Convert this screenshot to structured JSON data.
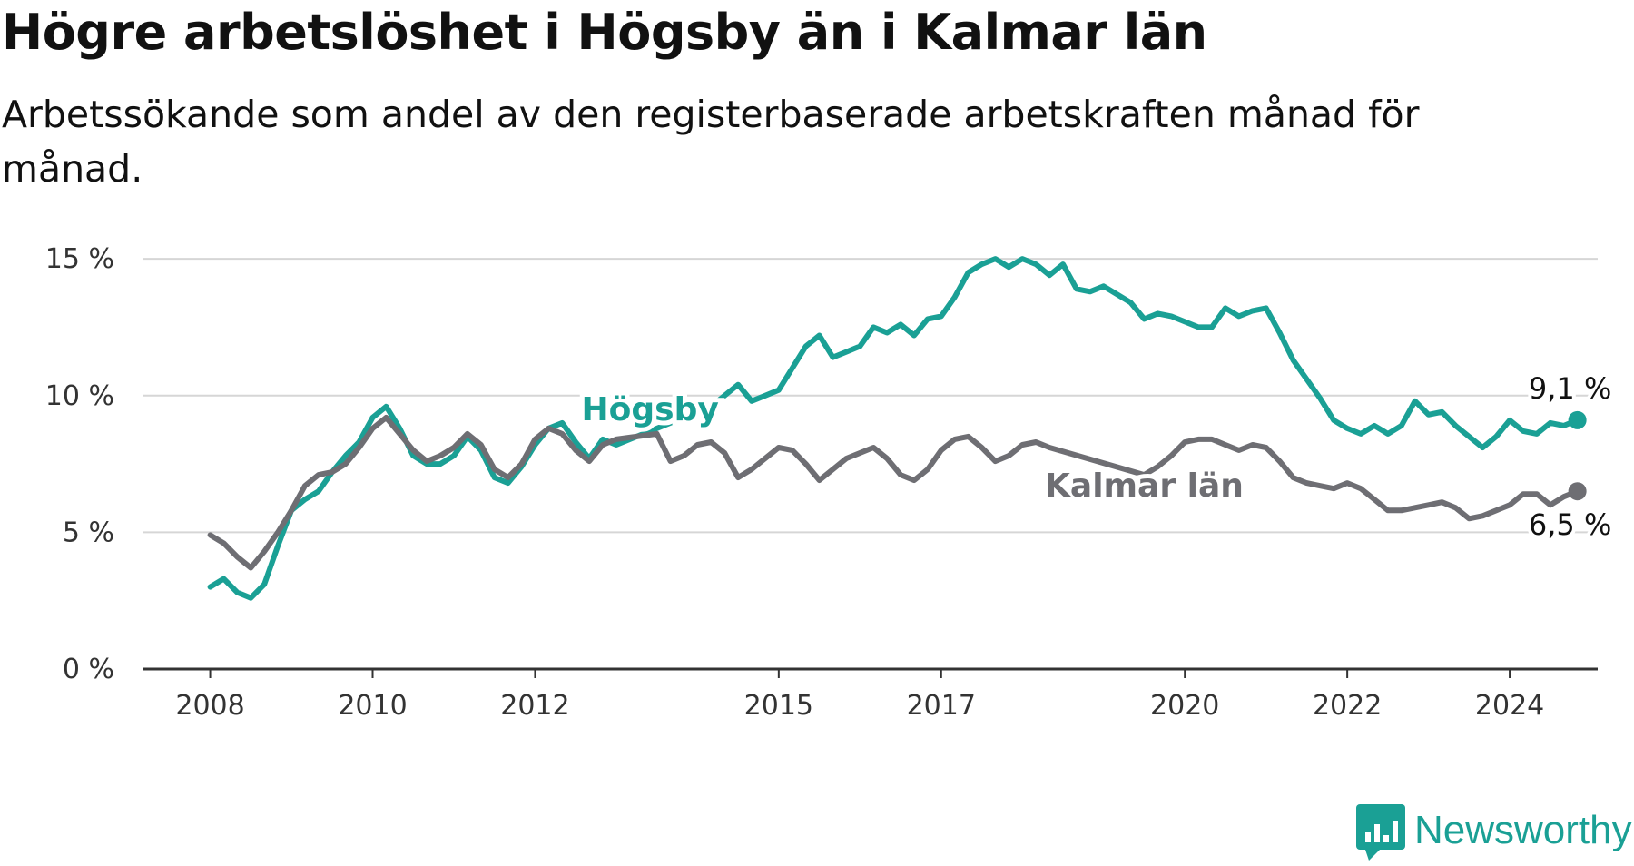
{
  "title": "Högre arbetslöshet i Högsby än i Kalmar län",
  "subtitle": "Arbetssökande som andel av den registerbaserade arbetskraften månad för månad.",
  "brand": {
    "name": "Newsworthy",
    "icon": "newsworthy-logo-icon",
    "color": "#1aa095"
  },
  "chart_data": {
    "type": "line",
    "title": "Högre arbetslöshet i Högsby än i Kalmar län",
    "subtitle": "Arbetssökande som andel av den registerbaserade arbetskraften månad för månad.",
    "xlabel": "",
    "ylabel": "",
    "x_ticks": [
      "2008",
      "2010",
      "2012",
      "2015",
      "2017",
      "2020",
      "2022",
      "2024"
    ],
    "y_ticks": [
      0,
      5,
      10,
      15
    ],
    "y_tick_labels": [
      "0 %",
      "5 %",
      "10 %",
      "15 %"
    ],
    "ylim": [
      0,
      16
    ],
    "xlim": [
      "2007-03",
      "2025-02"
    ],
    "grid": true,
    "legend": "inline-labels",
    "series": [
      {
        "name": "Högsby",
        "color": "#1aa095",
        "end_label": "9,1 %",
        "label_date": "2013-06",
        "points": [
          [
            "2008-01",
            3.0
          ],
          [
            "2008-03",
            3.3
          ],
          [
            "2008-05",
            2.8
          ],
          [
            "2008-07",
            2.6
          ],
          [
            "2008-09",
            3.1
          ],
          [
            "2008-11",
            4.5
          ],
          [
            "2009-01",
            5.8
          ],
          [
            "2009-03",
            6.2
          ],
          [
            "2009-05",
            6.5
          ],
          [
            "2009-07",
            7.2
          ],
          [
            "2009-09",
            7.8
          ],
          [
            "2009-11",
            8.3
          ],
          [
            "2010-01",
            9.2
          ],
          [
            "2010-03",
            9.6
          ],
          [
            "2010-05",
            8.8
          ],
          [
            "2010-07",
            7.8
          ],
          [
            "2010-09",
            7.5
          ],
          [
            "2010-11",
            7.5
          ],
          [
            "2011-01",
            7.8
          ],
          [
            "2011-03",
            8.5
          ],
          [
            "2011-05",
            8.0
          ],
          [
            "2011-07",
            7.0
          ],
          [
            "2011-09",
            6.8
          ],
          [
            "2011-11",
            7.4
          ],
          [
            "2012-01",
            8.2
          ],
          [
            "2012-03",
            8.8
          ],
          [
            "2012-05",
            9.0
          ],
          [
            "2012-07",
            8.3
          ],
          [
            "2012-09",
            7.7
          ],
          [
            "2012-11",
            8.4
          ],
          [
            "2013-01",
            8.2
          ],
          [
            "2013-06",
            8.7
          ],
          [
            "2013-11",
            9.2
          ],
          [
            "2014-03",
            9.6
          ],
          [
            "2014-07",
            10.4
          ],
          [
            "2014-09",
            9.8
          ],
          [
            "2014-11",
            10.0
          ],
          [
            "2015-01",
            10.2
          ],
          [
            "2015-03",
            11.0
          ],
          [
            "2015-05",
            11.8
          ],
          [
            "2015-07",
            12.2
          ],
          [
            "2015-09",
            11.4
          ],
          [
            "2015-11",
            11.6
          ],
          [
            "2016-01",
            11.8
          ],
          [
            "2016-03",
            12.5
          ],
          [
            "2016-05",
            12.3
          ],
          [
            "2016-07",
            12.6
          ],
          [
            "2016-09",
            12.2
          ],
          [
            "2016-11",
            12.8
          ],
          [
            "2017-01",
            12.9
          ],
          [
            "2017-03",
            13.6
          ],
          [
            "2017-05",
            14.5
          ],
          [
            "2017-07",
            14.8
          ],
          [
            "2017-09",
            15.0
          ],
          [
            "2017-11",
            14.7
          ],
          [
            "2018-01",
            15.0
          ],
          [
            "2018-03",
            14.8
          ],
          [
            "2018-05",
            14.4
          ],
          [
            "2018-07",
            14.8
          ],
          [
            "2018-09",
            13.9
          ],
          [
            "2018-11",
            13.8
          ],
          [
            "2019-01",
            14.0
          ],
          [
            "2019-03",
            13.7
          ],
          [
            "2019-05",
            13.4
          ],
          [
            "2019-07",
            12.8
          ],
          [
            "2019-09",
            13.0
          ],
          [
            "2019-11",
            12.9
          ],
          [
            "2020-01",
            12.7
          ],
          [
            "2020-03",
            12.5
          ],
          [
            "2020-05",
            12.5
          ],
          [
            "2020-07",
            13.2
          ],
          [
            "2020-09",
            12.9
          ],
          [
            "2020-11",
            13.1
          ],
          [
            "2021-01",
            13.2
          ],
          [
            "2021-03",
            12.3
          ],
          [
            "2021-05",
            11.3
          ],
          [
            "2021-07",
            10.6
          ],
          [
            "2021-09",
            9.9
          ],
          [
            "2021-11",
            9.1
          ],
          [
            "2022-01",
            8.8
          ],
          [
            "2022-03",
            8.6
          ],
          [
            "2022-05",
            8.9
          ],
          [
            "2022-07",
            8.6
          ],
          [
            "2022-09",
            8.9
          ],
          [
            "2022-11",
            9.8
          ],
          [
            "2023-01",
            9.3
          ],
          [
            "2023-03",
            9.4
          ],
          [
            "2023-05",
            8.9
          ],
          [
            "2023-07",
            8.5
          ],
          [
            "2023-09",
            8.1
          ],
          [
            "2023-11",
            8.5
          ],
          [
            "2024-01",
            9.1
          ],
          [
            "2024-03",
            8.7
          ],
          [
            "2024-05",
            8.6
          ],
          [
            "2024-07",
            9.0
          ],
          [
            "2024-09",
            8.9
          ],
          [
            "2024-11",
            9.1
          ]
        ]
      },
      {
        "name": "Kalmar län",
        "color": "#6e6e73",
        "end_label": "6,5 %",
        "label_date": "2019-02",
        "points": [
          [
            "2008-01",
            4.9
          ],
          [
            "2008-03",
            4.6
          ],
          [
            "2008-05",
            4.1
          ],
          [
            "2008-07",
            3.7
          ],
          [
            "2008-09",
            4.3
          ],
          [
            "2008-11",
            5.0
          ],
          [
            "2009-01",
            5.8
          ],
          [
            "2009-03",
            6.7
          ],
          [
            "2009-05",
            7.1
          ],
          [
            "2009-07",
            7.2
          ],
          [
            "2009-09",
            7.5
          ],
          [
            "2009-11",
            8.1
          ],
          [
            "2010-01",
            8.8
          ],
          [
            "2010-03",
            9.2
          ],
          [
            "2010-05",
            8.6
          ],
          [
            "2010-07",
            8.0
          ],
          [
            "2010-09",
            7.6
          ],
          [
            "2010-11",
            7.8
          ],
          [
            "2011-01",
            8.1
          ],
          [
            "2011-03",
            8.6
          ],
          [
            "2011-05",
            8.2
          ],
          [
            "2011-07",
            7.3
          ],
          [
            "2011-09",
            7.0
          ],
          [
            "2011-11",
            7.5
          ],
          [
            "2012-01",
            8.4
          ],
          [
            "2012-03",
            8.8
          ],
          [
            "2012-05",
            8.6
          ],
          [
            "2012-07",
            8.0
          ],
          [
            "2012-09",
            7.6
          ],
          [
            "2012-11",
            8.2
          ],
          [
            "2013-01",
            8.4
          ],
          [
            "2013-07",
            8.6
          ],
          [
            "2013-09",
            7.6
          ],
          [
            "2013-11",
            7.8
          ],
          [
            "2014-01",
            8.2
          ],
          [
            "2014-03",
            8.3
          ],
          [
            "2014-05",
            7.9
          ],
          [
            "2014-07",
            7.0
          ],
          [
            "2014-09",
            7.3
          ],
          [
            "2014-11",
            7.7
          ],
          [
            "2015-01",
            8.1
          ],
          [
            "2015-03",
            8.0
          ],
          [
            "2015-05",
            7.5
          ],
          [
            "2015-07",
            6.9
          ],
          [
            "2015-09",
            7.3
          ],
          [
            "2015-11",
            7.7
          ],
          [
            "2016-01",
            7.9
          ],
          [
            "2016-03",
            8.1
          ],
          [
            "2016-05",
            7.7
          ],
          [
            "2016-07",
            7.1
          ],
          [
            "2016-09",
            6.9
          ],
          [
            "2016-11",
            7.3
          ],
          [
            "2017-01",
            8.0
          ],
          [
            "2017-03",
            8.4
          ],
          [
            "2017-05",
            8.5
          ],
          [
            "2017-07",
            8.1
          ],
          [
            "2017-09",
            7.6
          ],
          [
            "2017-11",
            7.8
          ],
          [
            "2018-01",
            8.2
          ],
          [
            "2018-03",
            8.3
          ],
          [
            "2018-05",
            8.1
          ],
          [
            "2019-07",
            7.1
          ],
          [
            "2019-09",
            7.4
          ],
          [
            "2019-11",
            7.8
          ],
          [
            "2020-01",
            8.3
          ],
          [
            "2020-03",
            8.4
          ],
          [
            "2020-05",
            8.4
          ],
          [
            "2020-07",
            8.2
          ],
          [
            "2020-09",
            8.0
          ],
          [
            "2020-11",
            8.2
          ],
          [
            "2021-01",
            8.1
          ],
          [
            "2021-03",
            7.6
          ],
          [
            "2021-05",
            7.0
          ],
          [
            "2021-07",
            6.8
          ],
          [
            "2021-09",
            6.7
          ],
          [
            "2021-11",
            6.6
          ],
          [
            "2022-01",
            6.8
          ],
          [
            "2022-03",
            6.6
          ],
          [
            "2022-05",
            6.2
          ],
          [
            "2022-07",
            5.8
          ],
          [
            "2022-09",
            5.8
          ],
          [
            "2022-11",
            5.9
          ],
          [
            "2023-01",
            6.0
          ],
          [
            "2023-03",
            6.1
          ],
          [
            "2023-05",
            5.9
          ],
          [
            "2023-07",
            5.5
          ],
          [
            "2023-09",
            5.6
          ],
          [
            "2023-11",
            5.8
          ],
          [
            "2024-01",
            6.0
          ],
          [
            "2024-03",
            6.4
          ],
          [
            "2024-05",
            6.4
          ],
          [
            "2024-07",
            6.0
          ],
          [
            "2024-09",
            6.3
          ],
          [
            "2024-11",
            6.5
          ]
        ]
      }
    ]
  }
}
